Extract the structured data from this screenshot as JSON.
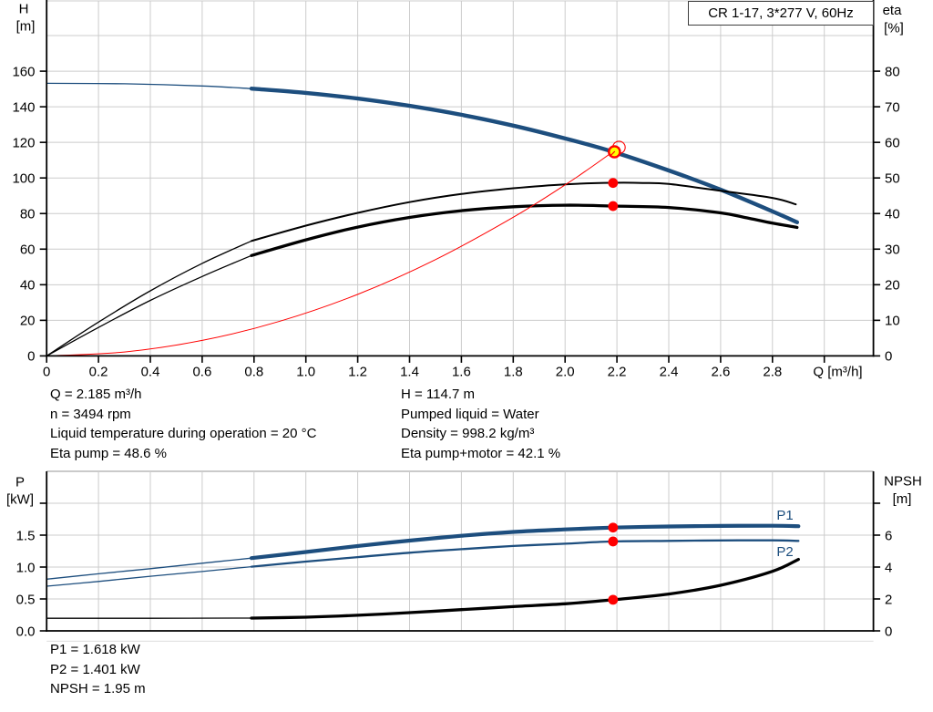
{
  "title_box": {
    "text": "CR 1-17, 3*277 V, 60Hz"
  },
  "info_block": {
    "left": [
      "Q = 2.185 m³/h",
      "n = 3494 rpm",
      "Liquid temperature during operation = 20 °C",
      "Eta pump = 48.6 %"
    ],
    "right": [
      "H = 114.7 m",
      "Pumped liquid = Water",
      "Density = 998.2 kg/m³",
      "Eta pump+motor = 42.1 %"
    ]
  },
  "result_block": {
    "lines": [
      "P1 = 1.618 kW",
      "P2 = 1.401 kW",
      "NPSH = 1.95 m"
    ]
  },
  "colors": {
    "blue": "#1d4e7e",
    "red": "#ff0000",
    "yellow": "#ffff00",
    "black": "#000000",
    "grid": "#cccccc",
    "frame": "#8f8f8f",
    "faint": "#e3e3e3",
    "box_border": "#3f3f3f",
    "text": "#000000"
  },
  "chart_data": [
    {
      "type": "line",
      "name": "qh-performance-chart",
      "title": "CR 1-17, 3*277 V, 60Hz",
      "x_axis": {
        "label": "Q [m³/h]",
        "min": 0,
        "max": 3.19,
        "tick_values": [
          0,
          0.2,
          0.4,
          0.6,
          0.8,
          1.0,
          1.2,
          1.4,
          1.6,
          1.8,
          2.0,
          2.2,
          2.4,
          2.6,
          2.8,
          3.0
        ],
        "tick_labels": [
          "0",
          "0.2",
          "0.4",
          "0.6",
          "0.8",
          "1.0",
          "1.2",
          "1.4",
          "1.6",
          "1.8",
          "2.0",
          "2.2",
          "2.4",
          "2.6",
          "2.8",
          ""
        ]
      },
      "y_left": {
        "label": "H",
        "unit": "[m]",
        "min": 0,
        "max": 200,
        "grid_step": 20,
        "tick_values": [
          0,
          20,
          40,
          60,
          80,
          100,
          120,
          140,
          160
        ],
        "tick_labels": [
          "0",
          "20",
          "40",
          "60",
          "80",
          "100",
          "120",
          "140",
          "160"
        ]
      },
      "y_right": {
        "label": "eta",
        "unit": "[%]",
        "min": 0,
        "max": 100,
        "tick_values": [
          0,
          10,
          20,
          30,
          40,
          50,
          60,
          70,
          80
        ],
        "tick_labels": [
          "0",
          "10",
          "20",
          "30",
          "40",
          "50",
          "60",
          "70",
          "80"
        ]
      },
      "series": [
        {
          "name": "head-curve",
          "label": "",
          "color": "blue",
          "axis": "left",
          "split_q": 0.79,
          "points": [
            [
              0,
              153.2
            ],
            [
              0.3,
              152.9
            ],
            [
              0.6,
              151.7
            ],
            [
              0.79,
              150.2
            ],
            [
              1.0,
              147.8
            ],
            [
              1.2,
              144.6
            ],
            [
              1.4,
              140.5
            ],
            [
              1.6,
              135.5
            ],
            [
              1.8,
              129.4
            ],
            [
              2.0,
              122.2
            ],
            [
              2.185,
              114.7
            ],
            [
              2.4,
              104.2
            ],
            [
              2.6,
              93.4
            ],
            [
              2.8,
              81.2
            ],
            [
              2.895,
              75.1
            ]
          ]
        },
        {
          "name": "eta-pump-curve",
          "label": "",
          "color": "black",
          "axis": "right",
          "split_q": 0.79,
          "points": [
            [
              0,
              0
            ],
            [
              0.2,
              9.5
            ],
            [
              0.4,
              18.3
            ],
            [
              0.6,
              26.0
            ],
            [
              0.79,
              32.3
            ],
            [
              1.0,
              36.6
            ],
            [
              1.2,
              40.2
            ],
            [
              1.4,
              43.2
            ],
            [
              1.6,
              45.5
            ],
            [
              1.8,
              47.1
            ],
            [
              2.0,
              48.2
            ],
            [
              2.185,
              48.65
            ],
            [
              2.3,
              48.6
            ],
            [
              2.4,
              48.3
            ],
            [
              2.6,
              46.4
            ],
            [
              2.8,
              44.4
            ],
            [
              2.89,
              42.6
            ]
          ]
        },
        {
          "name": "eta-pump-motor-curve",
          "label": "",
          "color": "black",
          "axis": "right",
          "split_q": 0.79,
          "points": [
            [
              0,
              0
            ],
            [
              0.2,
              8.0
            ],
            [
              0.4,
              15.6
            ],
            [
              0.6,
              22.3
            ],
            [
              0.79,
              28.2
            ],
            [
              1.0,
              32.6
            ],
            [
              1.2,
              36.2
            ],
            [
              1.4,
              38.9
            ],
            [
              1.6,
              40.8
            ],
            [
              1.8,
              41.9
            ],
            [
              2.0,
              42.35
            ],
            [
              2.185,
              42.1
            ],
            [
              2.4,
              41.7
            ],
            [
              2.6,
              40.2
            ],
            [
              2.7,
              38.8
            ],
            [
              2.8,
              37.3
            ],
            [
              2.895,
              36.1
            ]
          ]
        },
        {
          "name": "system-curve",
          "label": "",
          "color": "red",
          "axis": "left",
          "split_q": null,
          "points": [
            [
              0,
              0
            ],
            [
              0.3,
              2.2
            ],
            [
              0.6,
              8.7
            ],
            [
              0.9,
              19.5
            ],
            [
              1.2,
              34.6
            ],
            [
              1.5,
              54.1
            ],
            [
              1.8,
              77.9
            ],
            [
              2.0,
              96.1
            ],
            [
              2.1,
              106.0
            ],
            [
              2.208,
              117.15
            ]
          ]
        }
      ],
      "duty_point": {
        "q": 2.185,
        "h": 114.7
      },
      "intersection_point": {
        "q": 2.208,
        "h": 117.15
      },
      "marker_dots": [
        {
          "q": 2.185,
          "axis": "right",
          "v": 48.6
        },
        {
          "q": 2.185,
          "axis": "right",
          "v": 42.1
        }
      ]
    },
    {
      "type": "line",
      "name": "power-npsh-chart",
      "title": "",
      "x_axis": {
        "label": "",
        "min": 0,
        "max": 3.19,
        "tick_values": [],
        "tick_labels": []
      },
      "y_left": {
        "label": "P",
        "unit": "[kW]",
        "min": 0,
        "max": 2.5,
        "tick_values": [
          0,
          0.5,
          1.0,
          1.5,
          2.0
        ],
        "tick_labels": [
          "0.0",
          "0.5",
          "1.0",
          "1.5",
          ""
        ]
      },
      "y_right": {
        "label": "NPSH",
        "unit": "[m]",
        "min": 0,
        "max": 10,
        "tick_values": [
          0,
          2,
          4,
          6,
          8
        ],
        "tick_labels": [
          "0",
          "2",
          "4",
          "6",
          ""
        ]
      },
      "series": [
        {
          "name": "p1-curve",
          "label": "P1",
          "color": "blue",
          "axis": "left",
          "split_q": 0.79,
          "points": [
            [
              0,
              0.81
            ],
            [
              0.2,
              0.895
            ],
            [
              0.4,
              0.975
            ],
            [
              0.6,
              1.06
            ],
            [
              0.79,
              1.14
            ],
            [
              1.0,
              1.235
            ],
            [
              1.2,
              1.33
            ],
            [
              1.4,
              1.415
            ],
            [
              1.6,
              1.49
            ],
            [
              1.8,
              1.55
            ],
            [
              2.0,
              1.59
            ],
            [
              2.185,
              1.618
            ],
            [
              2.4,
              1.636
            ],
            [
              2.6,
              1.645
            ],
            [
              2.8,
              1.647
            ],
            [
              2.9,
              1.64
            ]
          ]
        },
        {
          "name": "p2-curve",
          "label": "P2",
          "color": "blue",
          "axis": "left",
          "split_q": 0.79,
          "points": [
            [
              0,
              0.7
            ],
            [
              0.2,
              0.775
            ],
            [
              0.4,
              0.855
            ],
            [
              0.6,
              0.93
            ],
            [
              0.79,
              1.005
            ],
            [
              1.0,
              1.085
            ],
            [
              1.2,
              1.155
            ],
            [
              1.4,
              1.225
            ],
            [
              1.6,
              1.28
            ],
            [
              1.8,
              1.33
            ],
            [
              2.0,
              1.366
            ],
            [
              2.185,
              1.401
            ],
            [
              2.4,
              1.41
            ],
            [
              2.6,
              1.417
            ],
            [
              2.8,
              1.419
            ],
            [
              2.9,
              1.41
            ]
          ]
        },
        {
          "name": "npsh-curve",
          "label": "",
          "color": "black",
          "axis": "right",
          "split_q": 0.79,
          "points": [
            [
              0,
              0.79
            ],
            [
              0.4,
              0.79
            ],
            [
              0.79,
              0.8
            ],
            [
              1.0,
              0.86
            ],
            [
              1.2,
              0.98
            ],
            [
              1.4,
              1.14
            ],
            [
              1.6,
              1.33
            ],
            [
              1.8,
              1.52
            ],
            [
              2.0,
              1.7
            ],
            [
              2.185,
              1.95
            ],
            [
              2.4,
              2.31
            ],
            [
              2.6,
              2.86
            ],
            [
              2.8,
              3.73
            ],
            [
              2.9,
              4.48
            ]
          ]
        }
      ],
      "marker_dots": [
        {
          "q": 2.185,
          "axis": "left",
          "v": 1.618
        },
        {
          "q": 2.185,
          "axis": "left",
          "v": 1.401
        },
        {
          "q": 2.185,
          "axis": "right",
          "v": 1.95
        }
      ]
    }
  ]
}
